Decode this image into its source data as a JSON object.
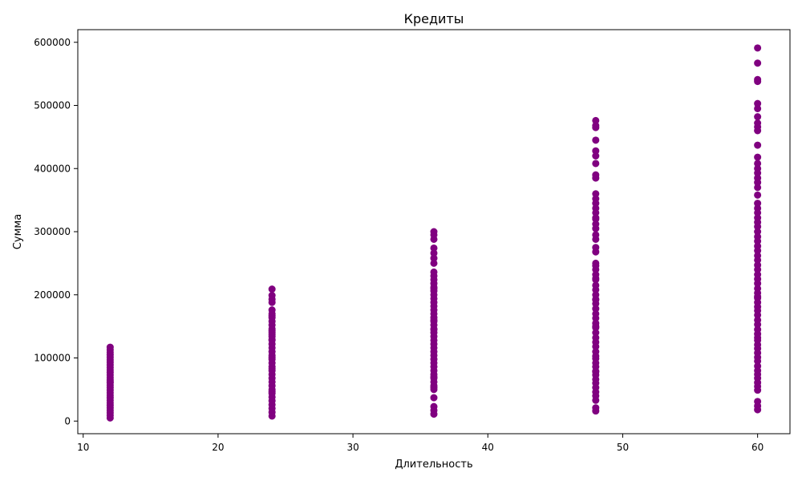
{
  "chart_data": {
    "type": "scatter",
    "title": "Кредиты",
    "xlabel": "Длительность",
    "ylabel": "Сумма",
    "xlim": [
      9.6,
      62.4
    ],
    "ylim": [
      -20000,
      620000
    ],
    "xticks": [
      10,
      20,
      30,
      40,
      50,
      60
    ],
    "yticks": [
      0,
      100000,
      200000,
      300000,
      400000,
      500000,
      600000
    ],
    "xtick_labels": [
      "10",
      "20",
      "30",
      "40",
      "50",
      "60"
    ],
    "ytick_labels": [
      "0",
      "100000",
      "200000",
      "300000",
      "400000",
      "500000",
      "600000"
    ],
    "grid": false,
    "marker_color": "#800080",
    "x": [
      12,
      12,
      12,
      12,
      12,
      12,
      12,
      12,
      12,
      12,
      12,
      12,
      12,
      12,
      12,
      12,
      12,
      12,
      12,
      12,
      12,
      12,
      12,
      12,
      12,
      12,
      12,
      12,
      12,
      12,
      24,
      24,
      24,
      24,
      24,
      24,
      24,
      24,
      24,
      24,
      24,
      24,
      24,
      24,
      24,
      24,
      24,
      24,
      24,
      24,
      24,
      24,
      24,
      24,
      24,
      24,
      24,
      24,
      24,
      24,
      24,
      24,
      24,
      24,
      24,
      24,
      24,
      24,
      24,
      24,
      36,
      36,
      36,
      36,
      36,
      36,
      36,
      36,
      36,
      36,
      36,
      36,
      36,
      36,
      36,
      36,
      36,
      36,
      36,
      36,
      36,
      36,
      36,
      36,
      36,
      36,
      36,
      36,
      36,
      36,
      36,
      36,
      36,
      36,
      36,
      36,
      36,
      36,
      36,
      36,
      36,
      36,
      36,
      36,
      36,
      36,
      36,
      36,
      48,
      48,
      48,
      48,
      48,
      48,
      48,
      48,
      48,
      48,
      48,
      48,
      48,
      48,
      48,
      48,
      48,
      48,
      48,
      48,
      48,
      48,
      48,
      48,
      48,
      48,
      48,
      48,
      48,
      48,
      48,
      48,
      48,
      48,
      48,
      48,
      48,
      48,
      48,
      48,
      48,
      48,
      48,
      48,
      48,
      48,
      48,
      48,
      48,
      48,
      48,
      48,
      48,
      48,
      48,
      48,
      48,
      48,
      48,
      48,
      60,
      60,
      60,
      60,
      60,
      60,
      60,
      60,
      60,
      60,
      60,
      60,
      60,
      60,
      60,
      60,
      60,
      60,
      60,
      60,
      60,
      60,
      60,
      60,
      60,
      60,
      60,
      60,
      60,
      60,
      60,
      60,
      60,
      60,
      60,
      60,
      60,
      60,
      60,
      60,
      60,
      60,
      60,
      60,
      60,
      60,
      60,
      60,
      60,
      60,
      60,
      60,
      60,
      60,
      60,
      60,
      60,
      60,
      60,
      60,
      60,
      60,
      60,
      60,
      60,
      60
    ],
    "y": [
      5000,
      9000,
      13000,
      17000,
      21000,
      25000,
      29000,
      33000,
      37000,
      41000,
      45000,
      49000,
      53000,
      57000,
      61000,
      65000,
      69000,
      73000,
      77000,
      81000,
      85000,
      89000,
      93000,
      97000,
      101000,
      105000,
      109000,
      113000,
      117000,
      62000,
      8000,
      14000,
      20000,
      26000,
      32000,
      38000,
      44000,
      50000,
      56000,
      62000,
      68000,
      74000,
      80000,
      86000,
      92000,
      98000,
      104000,
      110000,
      116000,
      122000,
      128000,
      134000,
      140000,
      146000,
      152000,
      158000,
      164000,
      170000,
      176000,
      188000,
      193000,
      199000,
      209000,
      47000,
      83000,
      129000,
      137000,
      143000,
      167000,
      101000,
      11000,
      17000,
      23000,
      37000,
      50000,
      56000,
      62000,
      68000,
      74000,
      80000,
      86000,
      92000,
      98000,
      104000,
      110000,
      116000,
      122000,
      128000,
      134000,
      140000,
      146000,
      152000,
      158000,
      164000,
      170000,
      176000,
      182000,
      188000,
      194000,
      200000,
      206000,
      212000,
      218000,
      224000,
      230000,
      236000,
      250000,
      258000,
      266000,
      274000,
      288000,
      300000,
      295000,
      70000,
      145000,
      160000,
      210000,
      53000,
      16000,
      21000,
      33000,
      40000,
      46000,
      53000,
      60000,
      66000,
      73000,
      79000,
      86000,
      92000,
      99000,
      110000,
      118000,
      125000,
      132000,
      140000,
      148000,
      155000,
      163000,
      170000,
      178000,
      186000,
      193000,
      200000,
      208000,
      215000,
      224000,
      232000,
      240000,
      246000,
      250000,
      268000,
      275000,
      288000,
      295000,
      305000,
      312000,
      320000,
      330000,
      337000,
      345000,
      352000,
      360000,
      385000,
      390000,
      408000,
      420000,
      428000,
      445000,
      465000,
      468000,
      476000,
      192000,
      226000,
      322000,
      150000,
      103000,
      78000,
      18000,
      24000,
      31000,
      49000,
      55000,
      61000,
      68000,
      74000,
      80000,
      87000,
      95000,
      101000,
      108000,
      115000,
      121000,
      128000,
      138000,
      145000,
      153000,
      160000,
      168000,
      175000,
      181000,
      188000,
      195000,
      203000,
      210000,
      218000,
      225000,
      232000,
      240000,
      247000,
      255000,
      262000,
      270000,
      277000,
      285000,
      292000,
      300000,
      308000,
      315000,
      322000,
      330000,
      337000,
      345000,
      358000,
      370000,
      378000,
      385000,
      393000,
      400000,
      408000,
      418000,
      437000,
      460000,
      466000,
      472000,
      482000,
      495000,
      503000,
      538000,
      541000,
      567000,
      591000,
      197000,
      132000
    ]
  }
}
